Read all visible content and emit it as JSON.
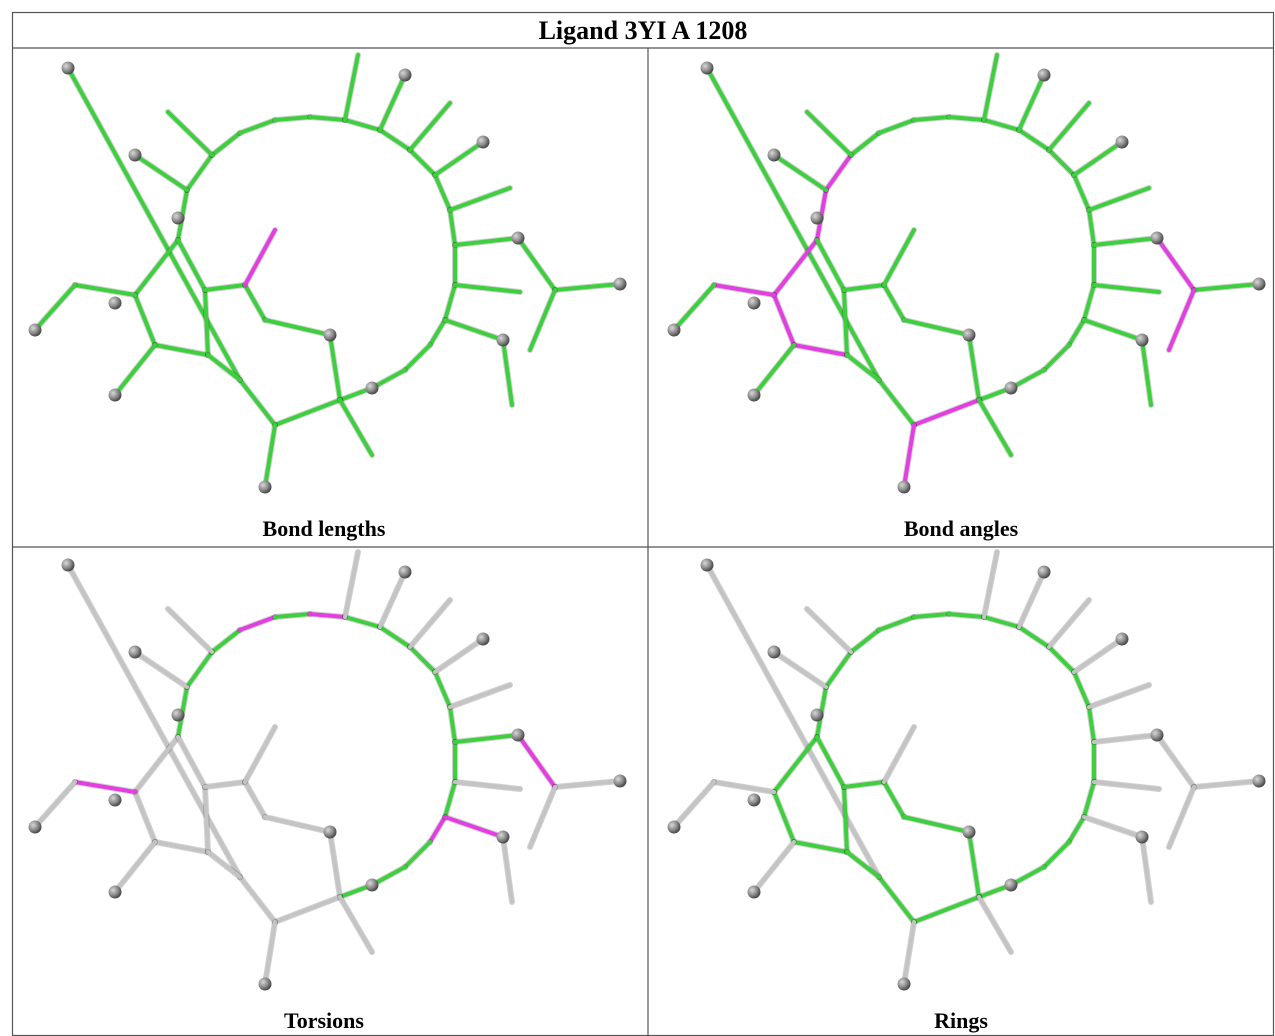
{
  "title": "Ligand 3YI A 1208",
  "panels": [
    {
      "caption": "Bond lengths"
    },
    {
      "caption": "Bond angles"
    },
    {
      "caption": "Torsions"
    },
    {
      "caption": "Rings"
    }
  ]
}
